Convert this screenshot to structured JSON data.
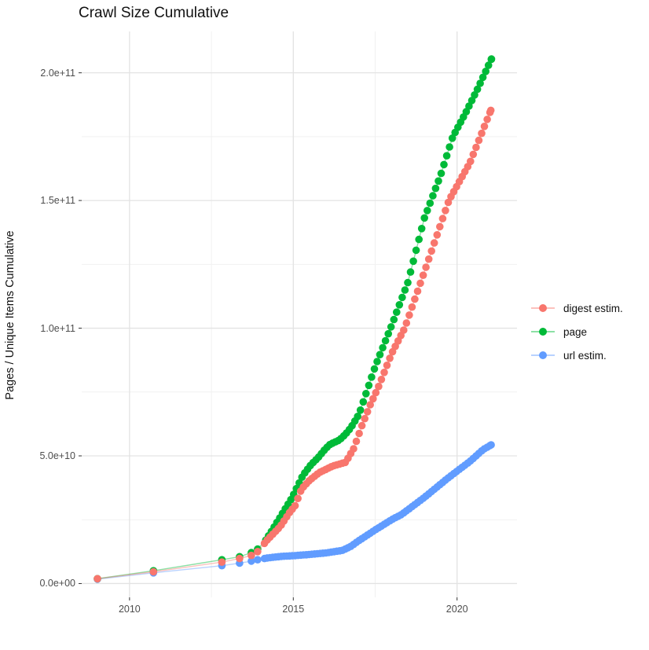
{
  "title": "Crawl Size Cumulative",
  "axes": {
    "y_title": "Pages / Unique Items Cumulative",
    "x_domain": [
      2008.54,
      2021.83
    ],
    "y_domain_e9": [
      -5.4,
      216.2
    ],
    "x_ticks": [
      {
        "label": "2010",
        "value": 2010
      },
      {
        "label": "2015",
        "value": 2015
      },
      {
        "label": "2020",
        "value": 2020
      }
    ],
    "y_ticks": [
      {
        "label": "0.0e+00",
        "value": 0
      },
      {
        "label": "5.0e+10",
        "value": 50
      },
      {
        "label": "1.0e+11",
        "value": 100
      },
      {
        "label": "1.5e+11",
        "value": 150
      },
      {
        "label": "2.0e+11",
        "value": 200
      }
    ],
    "x_minor": [
      2012.5,
      2017.5
    ],
    "y_minor": [
      25,
      75,
      125,
      175
    ],
    "grid": "on",
    "major_grid_color": "#E3E3E3",
    "minor_grid_color": "#F1F1F1",
    "tick_mark_color": "#333333"
  },
  "chart_data": {
    "type": "scatter",
    "note": "cumulative crawl size; x = crawl year (decimal), values in billions (1e9) of pages / unique items; points read from plot, dense monthly points sampled along anchors",
    "legend_position": "right",
    "dense_step_years": 0.085,
    "series": [
      {
        "name": "digest estim.",
        "color": "#F8766D",
        "sparse_points": [
          [
            2009.02,
            1.9
          ],
          [
            2010.73,
            4.6
          ],
          [
            2012.82,
            8.4
          ],
          [
            2013.36,
            9.8
          ],
          [
            2013.72,
            11.0
          ],
          [
            2013.91,
            12.5
          ]
        ],
        "anchor_points": [
          [
            2009.02,
            1.9
          ],
          [
            2010.73,
            4.6
          ],
          [
            2012.82,
            8.4
          ],
          [
            2013.36,
            9.8
          ],
          [
            2013.72,
            11.0
          ],
          [
            2013.91,
            12.5
          ],
          [
            2014.2,
            17.0
          ],
          [
            2014.6,
            22.3
          ],
          [
            2014.92,
            28.5
          ],
          [
            2015.04,
            30.0
          ],
          [
            2015.25,
            37.0
          ],
          [
            2015.5,
            40.5
          ],
          [
            2015.8,
            43.5
          ],
          [
            2016.2,
            46.0
          ],
          [
            2016.6,
            47.5
          ],
          [
            2016.85,
            53.0
          ],
          [
            2017.1,
            62.0
          ],
          [
            2017.35,
            70.0
          ],
          [
            2017.6,
            77.0
          ],
          [
            2018.0,
            90.0
          ],
          [
            2018.4,
            100.0
          ],
          [
            2019.0,
            122.0
          ],
          [
            2019.75,
            150.0
          ],
          [
            2020.4,
            165.0
          ],
          [
            2021.03,
            185.3
          ]
        ],
        "dense_start": 2014.12,
        "dense_end": 2021.03
      },
      {
        "name": "page",
        "color": "#00BA38",
        "sparse_points": [
          [
            2009.02,
            1.9
          ],
          [
            2010.73,
            5.0
          ],
          [
            2012.82,
            9.3
          ],
          [
            2013.36,
            10.5
          ],
          [
            2013.72,
            12.1
          ],
          [
            2013.91,
            13.5
          ]
        ],
        "anchor_points": [
          [
            2009.02,
            1.9
          ],
          [
            2010.73,
            5.0
          ],
          [
            2012.82,
            9.3
          ],
          [
            2013.36,
            10.5
          ],
          [
            2013.72,
            12.1
          ],
          [
            2013.91,
            13.5
          ],
          [
            2014.16,
            17.0
          ],
          [
            2014.36,
            21.0
          ],
          [
            2014.6,
            26.0
          ],
          [
            2014.96,
            33.6
          ],
          [
            2015.29,
            42.3
          ],
          [
            2015.53,
            46.4
          ],
          [
            2015.77,
            49.5
          ],
          [
            2015.97,
            52.6
          ],
          [
            2016.13,
            54.6
          ],
          [
            2016.41,
            56.2
          ],
          [
            2016.61,
            58.7
          ],
          [
            2016.77,
            61.3
          ],
          [
            2017.01,
            66.4
          ],
          [
            2017.5,
            85.0
          ],
          [
            2018.0,
            101.0
          ],
          [
            2018.5,
            118.0
          ],
          [
            2019.0,
            143.0
          ],
          [
            2019.5,
            160.0
          ],
          [
            2019.87,
            175.0
          ],
          [
            2020.25,
            184.0
          ],
          [
            2020.6,
            193.0
          ],
          [
            2021.05,
            205.4
          ]
        ],
        "dense_start": 2014.16,
        "dense_end": 2021.05
      },
      {
        "name": "url estim.",
        "color": "#619CFF",
        "sparse_points": [
          [
            2009.02,
            1.7
          ],
          [
            2010.73,
            4.2
          ],
          [
            2012.82,
            7.0
          ],
          [
            2013.36,
            8.0
          ],
          [
            2013.72,
            8.8
          ],
          [
            2013.91,
            9.3
          ]
        ],
        "anchor_points": [
          [
            2009.02,
            1.7
          ],
          [
            2010.73,
            4.2
          ],
          [
            2012.82,
            7.0
          ],
          [
            2013.36,
            8.0
          ],
          [
            2013.72,
            8.8
          ],
          [
            2013.91,
            9.3
          ],
          [
            2014.2,
            10.0
          ],
          [
            2014.6,
            10.6
          ],
          [
            2015.0,
            10.9
          ],
          [
            2015.5,
            11.4
          ],
          [
            2016.0,
            12.0
          ],
          [
            2016.5,
            13.0
          ],
          [
            2016.75,
            14.5
          ],
          [
            2017.0,
            16.8
          ],
          [
            2017.55,
            21.4
          ],
          [
            2018.0,
            25.0
          ],
          [
            2018.3,
            27.0
          ],
          [
            2019.0,
            33.7
          ],
          [
            2019.72,
            41.3
          ],
          [
            2020.4,
            47.9
          ],
          [
            2020.8,
            52.5
          ],
          [
            2021.04,
            54.3
          ]
        ],
        "dense_start": 2014.12,
        "dense_end": 2021.04
      }
    ]
  }
}
